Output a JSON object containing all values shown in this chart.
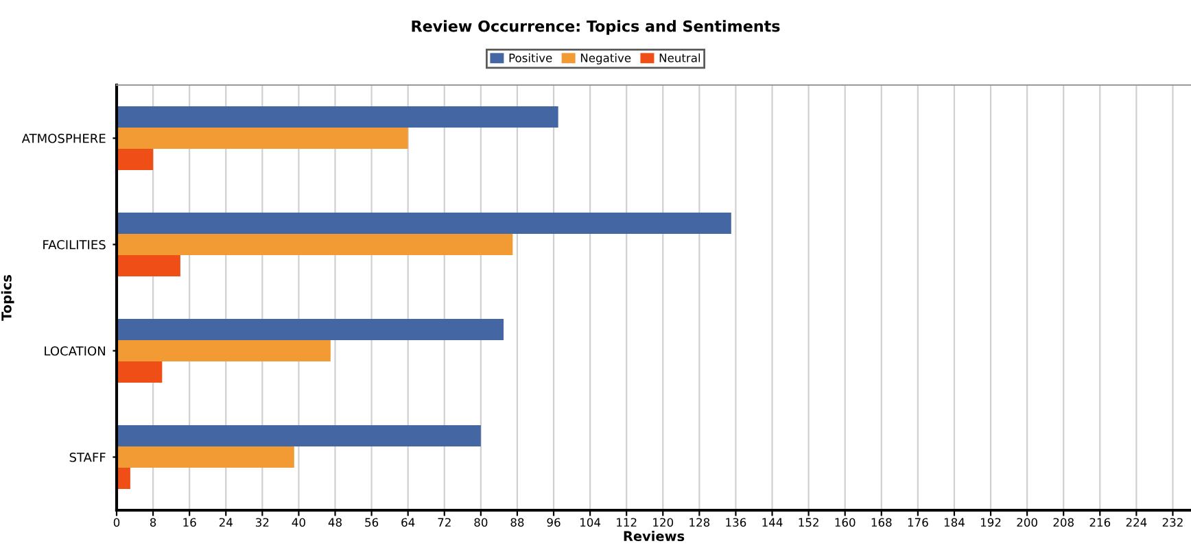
{
  "chart_data": {
    "type": "bar",
    "orientation": "horizontal",
    "title": "Review Occurrence: Topics and Sentiments",
    "xlabel": "Reviews",
    "ylabel": "Topics",
    "categories": [
      "ATMOSPHERE",
      "FACILITIES",
      "LOCATION",
      "STAFF"
    ],
    "series": [
      {
        "name": "Positive",
        "color": "#4467a3",
        "values": [
          97,
          135,
          85,
          80
        ]
      },
      {
        "name": "Negative",
        "color": "#f29b35",
        "values": [
          64,
          87,
          47,
          39
        ]
      },
      {
        "name": "Neutral",
        "color": "#f04e17",
        "values": [
          8,
          14,
          10,
          3
        ]
      }
    ],
    "xlim": [
      0,
      236
    ],
    "xticks": [
      0,
      8,
      16,
      24,
      32,
      40,
      48,
      56,
      64,
      72,
      80,
      88,
      96,
      104,
      112,
      120,
      128,
      136,
      144,
      152,
      160,
      168,
      176,
      184,
      192,
      200,
      208,
      216,
      224,
      232
    ],
    "grid": "x",
    "legend": "top"
  }
}
